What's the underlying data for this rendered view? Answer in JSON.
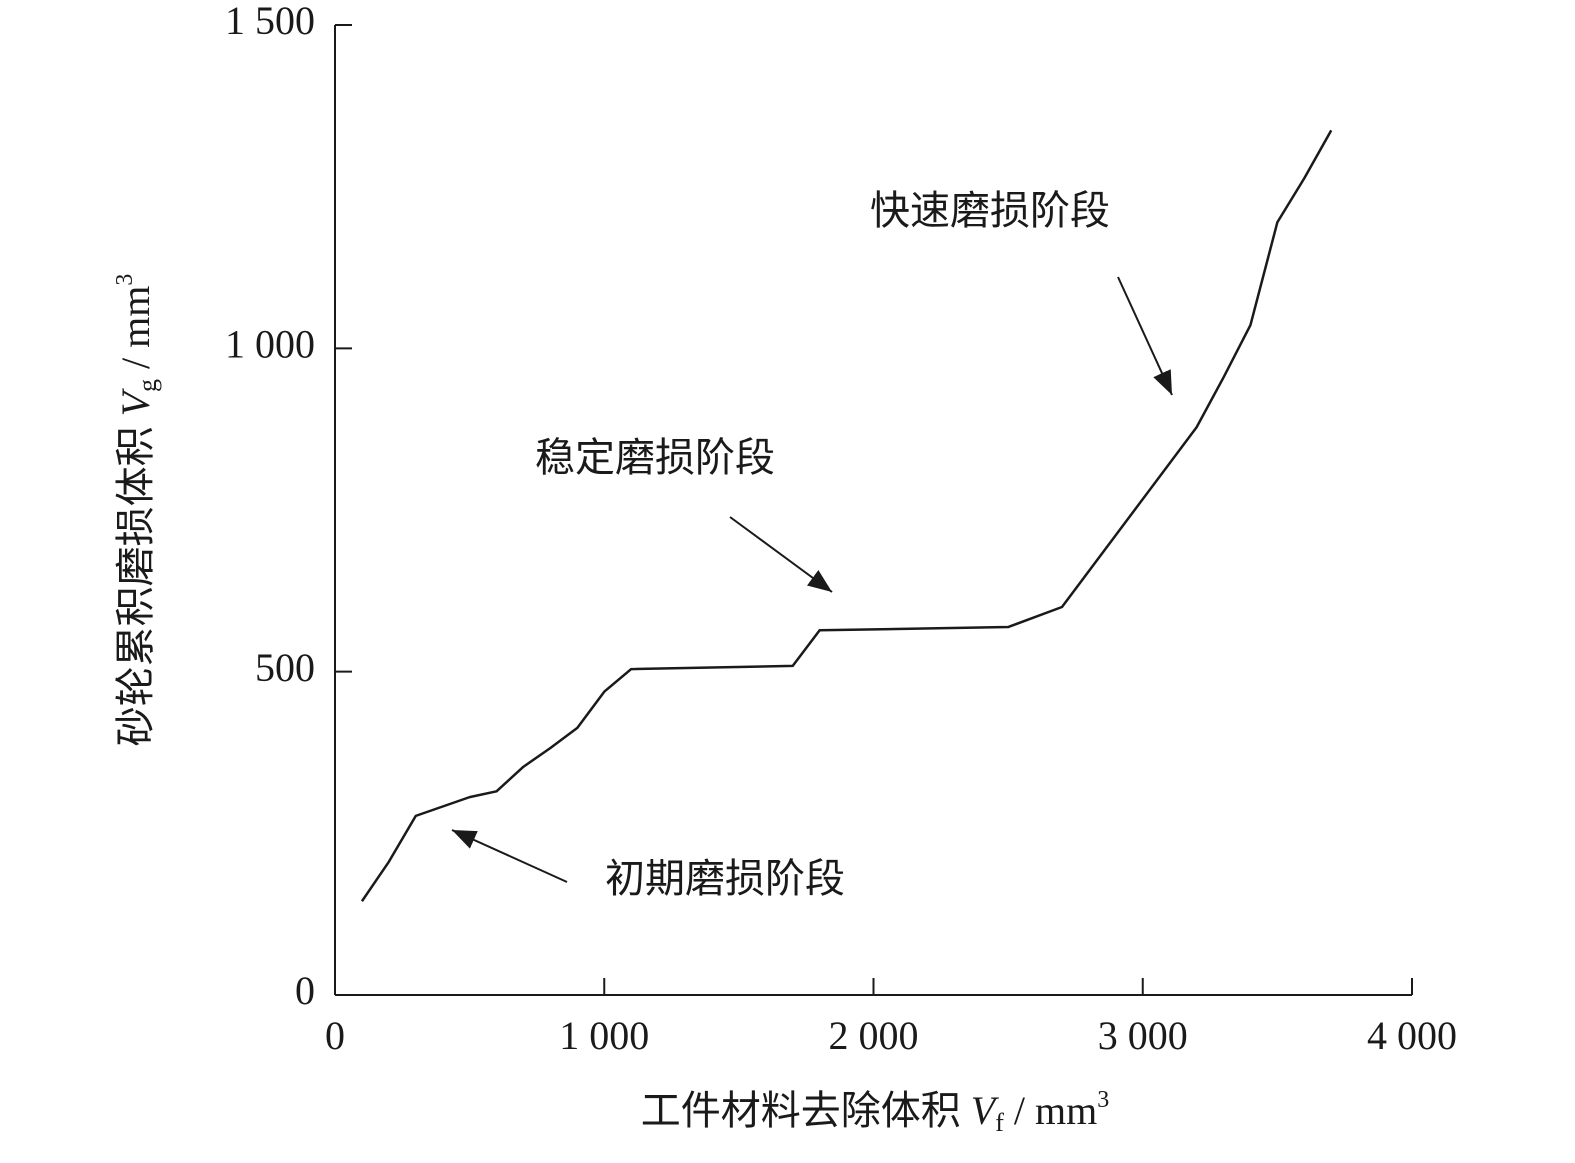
{
  "chart_data": {
    "type": "line",
    "x_label": [
      "工件材料去除体积 ",
      "V",
      "f",
      " / mm",
      "3"
    ],
    "y_label": [
      "砂轮累积磨损体积 ",
      "V",
      "g",
      " / mm",
      "3"
    ],
    "x": [
      100,
      200,
      300,
      500,
      600,
      700,
      800,
      900,
      1000,
      1100,
      1700,
      1800,
      2500,
      2700,
      3200,
      3300,
      3400,
      3500,
      3600,
      3700
    ],
    "series": [
      {
        "name": "砂轮累积磨损体积",
        "color": "#1a1a1a",
        "values": [
          145,
          206,
          277,
          306,
          315,
          353,
          382,
          413,
          469,
          504,
          509,
          564,
          569,
          600,
          878,
          955,
          1036,
          1195,
          1263,
          1337
        ]
      }
    ],
    "xlim": [
      0,
      4000
    ],
    "xticks": [
      0,
      {
        "value": 1000,
        "label": "1 000"
      },
      {
        "value": 2000,
        "label": "2 000"
      },
      {
        "value": 3000,
        "label": "3 000"
      },
      {
        "value": 4000,
        "label": "4 000"
      }
    ],
    "ylim": [
      0,
      1500
    ],
    "yticks": [
      0,
      500,
      {
        "value": 1000,
        "label": "1 000"
      },
      {
        "value": 1500,
        "label": "1 500"
      }
    ],
    "annotations": [
      "快速磨损阶段",
      "稳定磨损阶段",
      "初期磨损阶段"
    ]
  }
}
